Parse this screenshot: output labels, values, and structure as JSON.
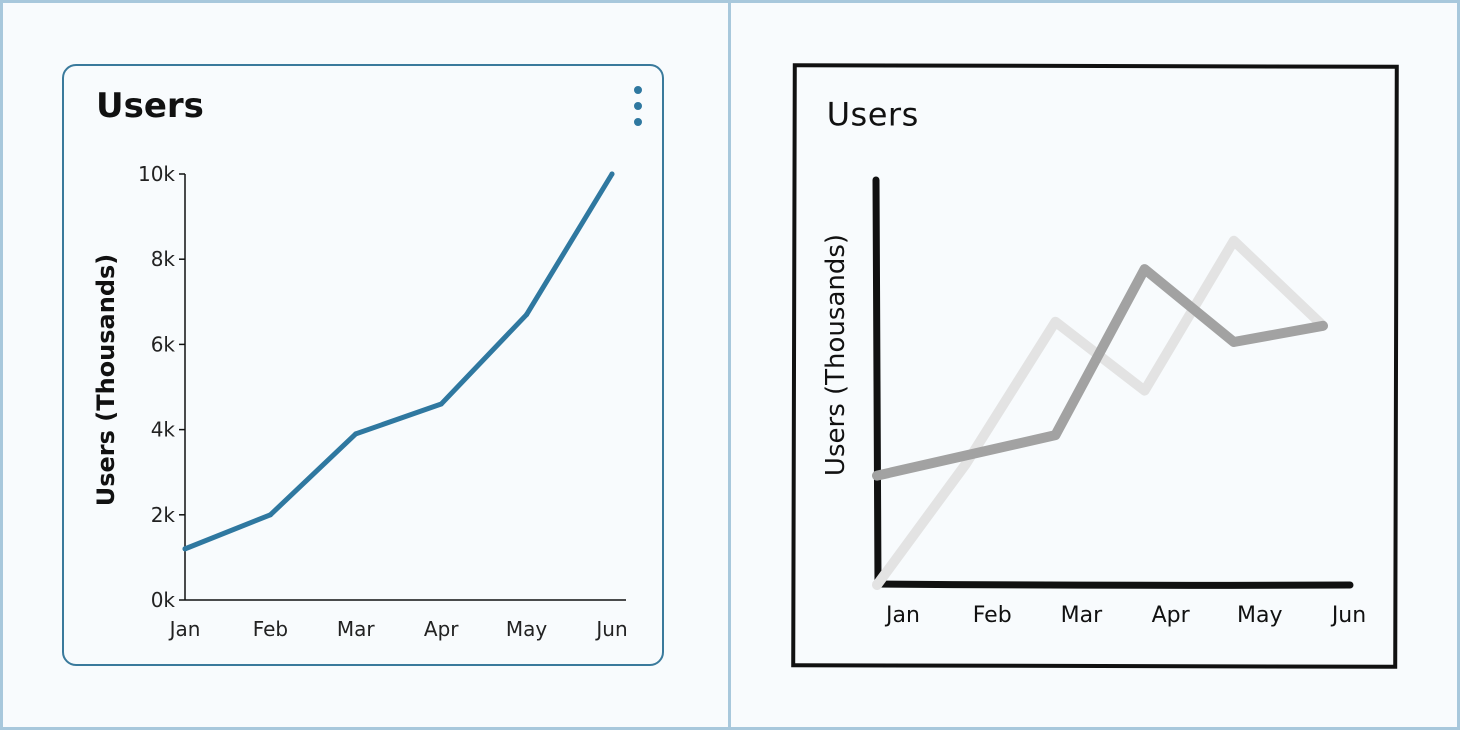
{
  "chart_data": [
    {
      "type": "line",
      "title": "Users",
      "xlabel": "",
      "ylabel": "Users (Thousands)",
      "categories": [
        "Jan",
        "Feb",
        "Mar",
        "Apr",
        "May",
        "Jun"
      ],
      "series": [
        {
          "values": [
            1.2,
            2.0,
            3.9,
            4.6,
            6.7,
            10.0
          ],
          "color": "#2f78a0"
        }
      ],
      "ylim": [
        0,
        10
      ],
      "yticks": [
        "0k",
        "2k",
        "4k",
        "6k",
        "8k",
        "10k"
      ],
      "grid": false,
      "menu_icon": "vertical-ellipsis-icon"
    },
    {
      "type": "line",
      "style": "hand-drawn wireframe",
      "title": "Users",
      "xlabel": "",
      "ylabel": "Users (Thousands)",
      "categories": [
        "Jan",
        "Feb",
        "Mar",
        "Apr",
        "May",
        "Jun"
      ],
      "series": [
        {
          "values": [
            2.7,
            3.2,
            3.7,
            7.8,
            6.0,
            6.4
          ],
          "color": "#a2a2a2"
        },
        {
          "values": [
            0.0,
            3.0,
            6.5,
            4.8,
            8.5,
            6.4
          ],
          "color": "#e3e3e3"
        }
      ],
      "ylim": [
        0,
        10
      ],
      "grid": false
    }
  ]
}
